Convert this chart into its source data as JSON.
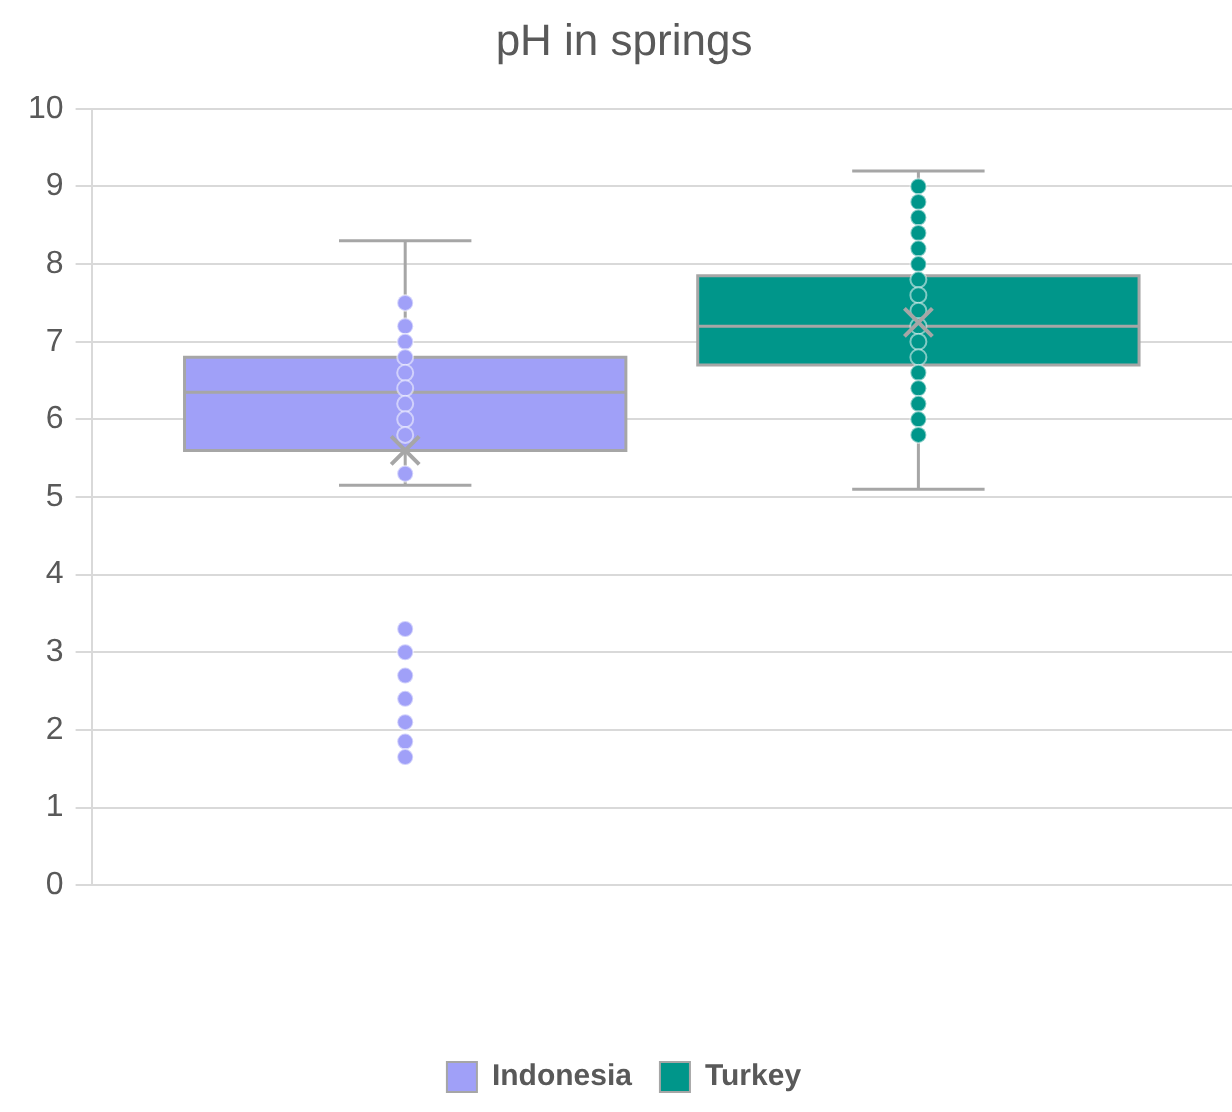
{
  "chart_data": {
    "type": "box",
    "title": "pH in springs",
    "categories": [
      null
    ],
    "series": [
      {
        "name": "Indonesia",
        "color": "#a0a0f8",
        "boxes": [
          {
            "low": 5.15,
            "q1": 5.6,
            "median": 6.35,
            "q3": 6.8,
            "high": 8.3,
            "mean": 5.6,
            "outliers": [
              7.5,
              7.2,
              7.0,
              6.8,
              6.6,
              6.4,
              6.2,
              6.0,
              5.8,
              5.3,
              3.3,
              3.0,
              2.7,
              2.4,
              2.1,
              1.85,
              1.65
            ]
          }
        ]
      },
      {
        "name": "Turkey",
        "color": "#00968a",
        "boxes": [
          {
            "low": 5.1,
            "q1": 6.7,
            "median": 7.2,
            "q3": 7.85,
            "high": 9.2,
            "mean": 7.25,
            "outliers": [
              9.0,
              8.8,
              8.6,
              8.4,
              8.2,
              8.0,
              7.8,
              7.6,
              7.4,
              7.2,
              7.0,
              6.8,
              6.6,
              6.4,
              6.2,
              6.0,
              5.8
            ]
          }
        ]
      }
    ],
    "ylim": [
      0,
      10
    ],
    "yticks": [
      0,
      1,
      2,
      3,
      4,
      5,
      6,
      7,
      8,
      9,
      10
    ],
    "grid": "y",
    "legend": "bottom",
    "marker": "circle"
  }
}
